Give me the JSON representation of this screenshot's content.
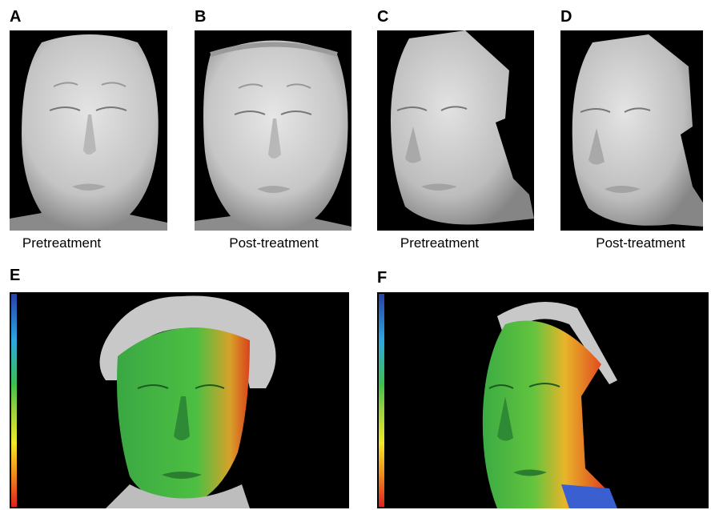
{
  "panels": [
    {
      "letter": "A",
      "caption": "Pretreatment"
    },
    {
      "letter": "B",
      "caption": "Post-treatment"
    },
    {
      "letter": "C",
      "caption": "Pretreatment"
    },
    {
      "letter": "D",
      "caption": "Post-treatment"
    },
    {
      "letter": "E",
      "caption": ""
    },
    {
      "letter": "F",
      "caption": ""
    }
  ],
  "colors": {
    "background": "#000000",
    "face_gray": "#c9c9c9",
    "heatmap_green": "#41b845",
    "heatmap_red": "#e03a1e",
    "heatmap_yellow": "#f0d02a"
  },
  "icons": [
    "face-scan-3d",
    "color-deviation-map"
  ]
}
